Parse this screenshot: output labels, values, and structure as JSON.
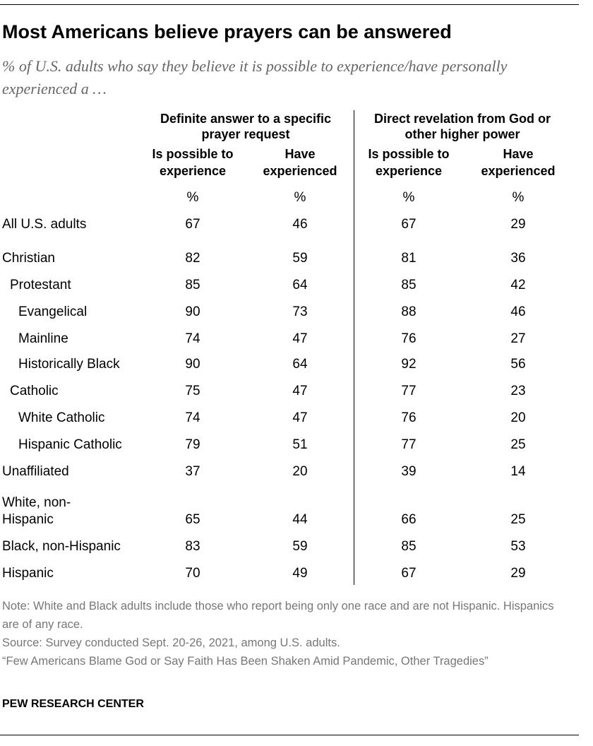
{
  "header": {
    "title": "Most Americans believe prayers can be answered",
    "subtitle": "% of U.S. adults who say they believe it is possible to experience/have personally experienced a …"
  },
  "table": {
    "group_headers": [
      "Definite answer to a specific prayer request",
      "Direct revelation from God or other higher power"
    ],
    "column_headers": [
      "Is possible to experience",
      "Have experienced",
      "Is possible to experience",
      "Have experienced"
    ],
    "units": [
      "%",
      "%",
      "%",
      "%"
    ],
    "rows": [
      {
        "label": "All U.S. adults",
        "values": [
          67,
          46,
          67,
          29
        ]
      },
      {
        "label": "Christian",
        "values": [
          82,
          59,
          81,
          36
        ]
      },
      {
        "label": "Protestant",
        "values": [
          85,
          64,
          85,
          42
        ]
      },
      {
        "label": "Evangelical",
        "values": [
          90,
          73,
          88,
          46
        ]
      },
      {
        "label": "Mainline",
        "values": [
          74,
          47,
          76,
          27
        ]
      },
      {
        "label": "Historically Black",
        "values": [
          90,
          64,
          92,
          56
        ]
      },
      {
        "label": "Catholic",
        "values": [
          75,
          47,
          77,
          23
        ]
      },
      {
        "label": "White Catholic",
        "values": [
          74,
          47,
          76,
          20
        ]
      },
      {
        "label": "Hispanic Catholic",
        "values": [
          79,
          51,
          77,
          25
        ]
      },
      {
        "label": "Unaffiliated",
        "values": [
          37,
          20,
          39,
          14
        ]
      },
      {
        "label": "White, non-Hispanic",
        "values": [
          65,
          44,
          66,
          25
        ]
      },
      {
        "label": "Black, non-Hispanic",
        "values": [
          83,
          59,
          85,
          53
        ]
      },
      {
        "label": "Hispanic",
        "values": [
          70,
          49,
          67,
          29
        ]
      }
    ]
  },
  "notes": [
    "Note: White and Black adults include those who report being only one race and are not Hispanic. Hispanics are of any race.",
    "Source: Survey conducted Sept. 20-26, 2021, among U.S. adults.",
    "“Few Americans Blame God or Say Faith Has Been Shaken Amid Pandemic, Other Tragedies”"
  ],
  "footer": "PEW RESEARCH CENTER"
}
